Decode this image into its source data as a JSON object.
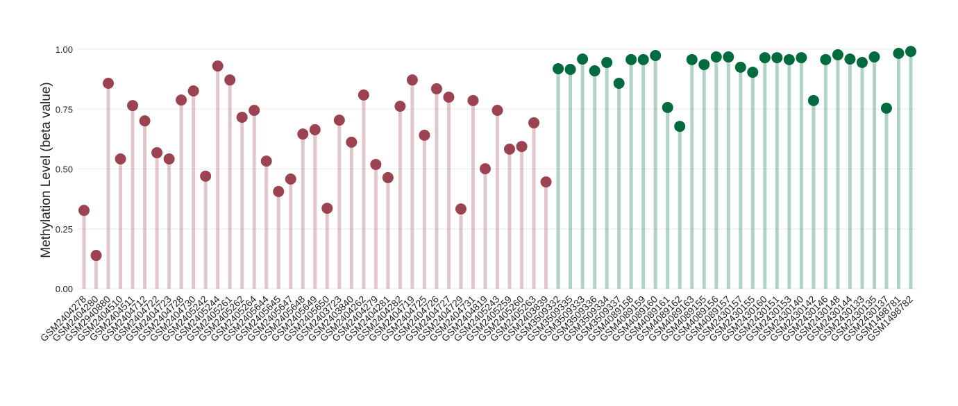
{
  "chart_data": {
    "type": "lollipop",
    "y_label": "Methylation Level (beta value)",
    "categories": [
      "GSM2404278",
      "GSM2404280",
      "GSM2940880",
      "GSM2404510",
      "GSM2404511",
      "GSM2404712",
      "GSM2404722",
      "GSM2404723",
      "GSM2404728",
      "GSM2404730",
      "GSM2405242",
      "GSM2405244",
      "GSM2405261",
      "GSM2405262",
      "GSM2405264",
      "GSM2405644",
      "GSM2405645",
      "GSM2405647",
      "GSM2405648",
      "GSM2405649",
      "GSM2405650",
      "GSM2403723",
      "GSM2403840",
      "GSM2404262",
      "GSM2404279",
      "GSM2404281",
      "GSM2404282",
      "GSM2404719",
      "GSM2404725",
      "GSM2404726",
      "GSM2404727",
      "GSM2404729",
      "GSM2404731",
      "GSM2404819",
      "GSM2405243",
      "GSM2405259",
      "GSM2405260",
      "GSM2405263",
      "GSM2403839",
      "GSM3509332",
      "GSM3509335",
      "GSM3509333",
      "GSM3509336",
      "GSM3509334",
      "GSM3509337",
      "GSM4089158",
      "GSM4089159",
      "GSM4089160",
      "GSM4089161",
      "GSM4089162",
      "GSM4089163",
      "GSM4089155",
      "GSM4089156",
      "GSM4089157",
      "GSM2430157",
      "GSM2430155",
      "GSM2430160",
      "GSM2430151",
      "GSM2430153",
      "GSM2430140",
      "GSM2430142",
      "GSM2430146",
      "GSM2430148",
      "GSM2430144",
      "GSM2430133",
      "GSM2430135",
      "GSM2430137",
      "GSM1498781",
      "GSM1498782"
    ],
    "values": [
      0.327,
      0.139,
      0.858,
      0.542,
      0.765,
      0.701,
      0.568,
      0.542,
      0.788,
      0.826,
      0.47,
      0.93,
      0.872,
      0.716,
      0.745,
      0.533,
      0.406,
      0.458,
      0.646,
      0.664,
      0.336,
      0.704,
      0.612,
      0.809,
      0.519,
      0.464,
      0.762,
      0.872,
      0.641,
      0.835,
      0.8,
      0.333,
      0.786,
      0.501,
      0.745,
      0.583,
      0.594,
      0.693,
      0.446,
      0.919,
      0.916,
      0.959,
      0.91,
      0.945,
      0.858,
      0.957,
      0.957,
      0.974,
      0.757,
      0.678,
      0.957,
      0.936,
      0.968,
      0.968,
      0.925,
      0.904,
      0.965,
      0.965,
      0.957,
      0.965,
      0.786,
      0.957,
      0.977,
      0.959,
      0.945,
      0.968,
      0.754,
      0.983,
      0.991
    ],
    "colors": [
      "#9b4350",
      "#9b4350",
      "#9b4350",
      "#9b4350",
      "#9b4350",
      "#9b4350",
      "#9b4350",
      "#9b4350",
      "#9b4350",
      "#9b4350",
      "#9b4350",
      "#9b4350",
      "#9b4350",
      "#9b4350",
      "#9b4350",
      "#9b4350",
      "#9b4350",
      "#9b4350",
      "#9b4350",
      "#9b4350",
      "#9b4350",
      "#9b4350",
      "#9b4350",
      "#9b4350",
      "#9b4350",
      "#9b4350",
      "#9b4350",
      "#9b4350",
      "#9b4350",
      "#9b4350",
      "#9b4350",
      "#9b4350",
      "#9b4350",
      "#9b4350",
      "#9b4350",
      "#9b4350",
      "#9b4350",
      "#9b4350",
      "#9b4350",
      "#006b3f",
      "#006b3f",
      "#006b3f",
      "#006b3f",
      "#006b3f",
      "#006b3f",
      "#006b3f",
      "#006b3f",
      "#006b3f",
      "#006b3f",
      "#006b3f",
      "#006b3f",
      "#006b3f",
      "#006b3f",
      "#006b3f",
      "#006b3f",
      "#006b3f",
      "#006b3f",
      "#006b3f",
      "#006b3f",
      "#006b3f",
      "#006b3f",
      "#006b3f",
      "#006b3f",
      "#006b3f",
      "#006b3f",
      "#006b3f",
      "#006b3f",
      "#006b3f",
      "#006b3f"
    ],
    "ylim": [
      0,
      1.05
    ],
    "yticks": [
      {
        "value": 0,
        "label": "0.00"
      },
      {
        "value": 0.25,
        "label": "0.25"
      },
      {
        "value": 0.5,
        "label": "0.50"
      },
      {
        "value": 0.75,
        "label": "0.75"
      },
      {
        "value": 1,
        "label": "1.00"
      }
    ],
    "grid": true
  }
}
